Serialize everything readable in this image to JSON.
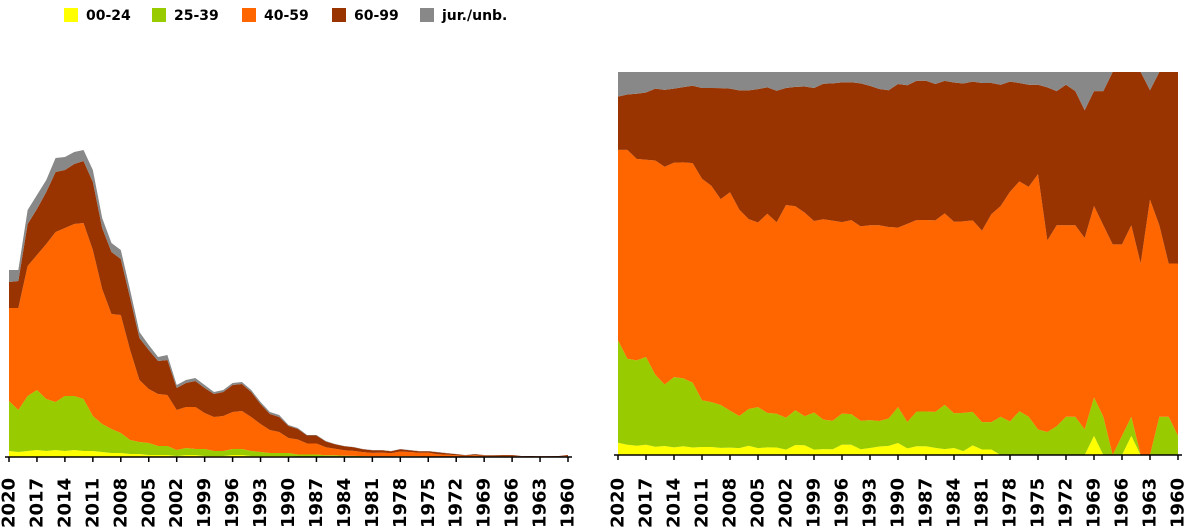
{
  "chart_data": [
    {
      "type": "stacked_area",
      "x": [
        2020,
        2019,
        2018,
        2017,
        2016,
        2015,
        2014,
        2013,
        2012,
        2011,
        2010,
        2009,
        2008,
        2007,
        2006,
        2005,
        2004,
        2003,
        2002,
        2001,
        2000,
        1999,
        1998,
        1997,
        1996,
        1995,
        1994,
        1993,
        1992,
        1991,
        1990,
        1989,
        1988,
        1987,
        1986,
        1985,
        1984,
        1983,
        1982,
        1981,
        1980,
        1979,
        1978,
        1977,
        1976,
        1975,
        1974,
        1973,
        1972,
        1971,
        1970,
        1969,
        1968,
        1967,
        1966,
        1965,
        1964,
        1963,
        1962,
        1961,
        1960
      ],
      "xlim": [
        2020,
        1960
      ],
      "xticks": [
        2020,
        2017,
        2014,
        2011,
        2008,
        2005,
        2002,
        1999,
        1996,
        1993,
        1990,
        1987,
        1984,
        1981,
        1978,
        1975,
        1972,
        1969,
        1966,
        1963,
        1960
      ],
      "ylim": [
        0,
        310
      ],
      "series": [
        {
          "name": "00-24",
          "color": "#ffff00",
          "values": [
            6,
            5,
            6,
            7,
            6,
            7,
            6,
            7,
            6,
            6,
            5,
            4,
            4,
            3,
            3,
            2,
            2,
            2,
            1,
            2,
            2,
            1,
            1,
            1,
            2,
            2,
            1,
            1,
            1,
            1,
            1,
            0.5,
            0.5,
            0.5,
            0.3,
            0.2,
            0.2,
            0.1,
            0.2,
            0.1,
            0.1,
            0,
            0,
            0,
            0,
            0,
            0,
            0,
            0,
            0,
            0,
            0.1,
            0,
            0,
            0,
            0.05,
            0,
            0,
            0,
            0,
            0
          ]
        },
        {
          "name": "25-39",
          "color": "#99cc00",
          "values": [
            50,
            42,
            55,
            60,
            52,
            48,
            55,
            54,
            52,
            35,
            28,
            24,
            20,
            14,
            12,
            12,
            9,
            9,
            6,
            7,
            6,
            7,
            5,
            5,
            6,
            6,
            5,
            4,
            3,
            3,
            3,
            2,
            2,
            2,
            1.5,
            1.5,
            1,
            1,
            0.7,
            0.5,
            0.5,
            0.6,
            0.7,
            0.8,
            0.6,
            0.4,
            0.3,
            0.3,
            0.3,
            0.2,
            0.2,
            0.2,
            0.2,
            0,
            0.1,
            0.05,
            0,
            0,
            0.1,
            0.1,
            0.1
          ]
        },
        {
          "name": "40-59",
          "color": "#ff6600",
          "values": [
            93,
            102,
            130,
            135,
            155,
            170,
            168,
            172,
            176,
            166,
            135,
            115,
            118,
            90,
            62,
            54,
            52,
            51,
            40,
            41,
            42,
            36,
            34,
            35,
            37,
            38,
            34,
            28,
            23,
            21,
            15,
            15,
            11,
            11,
            8,
            6.5,
            5.5,
            5,
            4,
            3.5,
            3.8,
            3.3,
            4.8,
            4.2,
            3.6,
            4.0,
            2.5,
            2.1,
            1.5,
            1.0,
            1.5,
            1.0,
            1.0,
            1.1,
            1.0,
            0.5,
            0.5,
            0.7,
            0.5,
            0.4,
            0.9
          ]
        },
        {
          "name": "60-99",
          "color": "#993300",
          "values": [
            26,
            27,
            42,
            46,
            52,
            60,
            58,
            60,
            62,
            68,
            61,
            62,
            56,
            52,
            42,
            39,
            33,
            35,
            22,
            24,
            26,
            25,
            23,
            24,
            27,
            27,
            25,
            20,
            16,
            15,
            12,
            10.5,
            8,
            8,
            5.7,
            4.5,
            4,
            3.6,
            2.9,
            2.7,
            2.4,
            1.9,
            2.3,
            1.8,
            1.6,
            1.4,
            2.0,
            1.4,
            1.1,
            0.7,
            1.0,
            0.6,
            0.7,
            0.9,
            0.9,
            0.4,
            0.5,
            0.3,
            0.4,
            0.5,
            1.0
          ]
        },
        {
          "name": "jur./unb.",
          "color": "#888888",
          "values": [
            12,
            11,
            14,
            14,
            12,
            14,
            13,
            12,
            11,
            12,
            10,
            9,
            9,
            8,
            6,
            5,
            4,
            5,
            3,
            3,
            3,
            3,
            2,
            2,
            2,
            2,
            2,
            2,
            2,
            2,
            1,
            1,
            0.5,
            0.5,
            0.5,
            0.3,
            0.3,
            0.3,
            0.2,
            0.2,
            0.2,
            0.2,
            0.2,
            0.2,
            0.2,
            0.2,
            0.2,
            0.2,
            0.1,
            0.1,
            0.3,
            0.1,
            0.1,
            0,
            0,
            0,
            0,
            0.05,
            0,
            0,
            0
          ]
        }
      ]
    },
    {
      "type": "stacked_area_percent"
    }
  ]
}
